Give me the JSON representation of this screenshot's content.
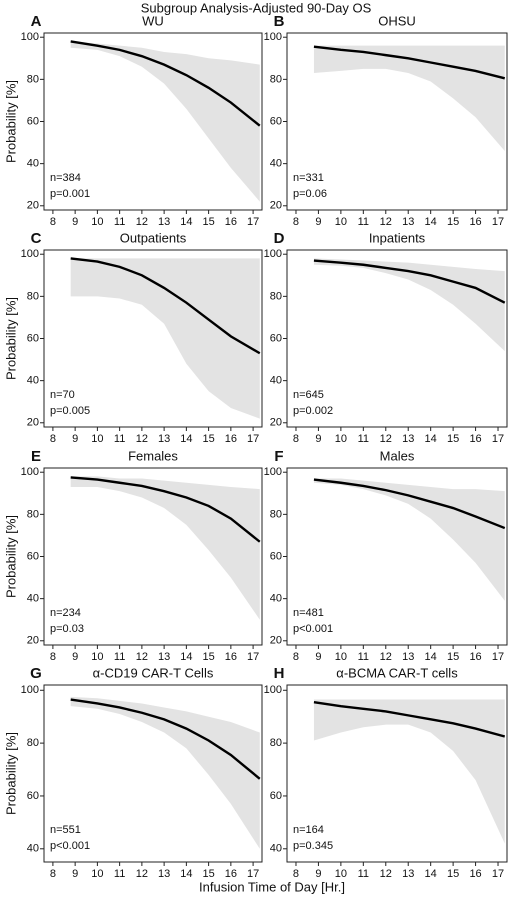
{
  "title": "Subgroup Analysis-Adjusted 90-Day OS",
  "x_label": "Infusion Time of Day [Hr.]",
  "chart_data": [
    {
      "type": "line",
      "panel_label": "A",
      "title": "WU",
      "ylabel": "Probability [%]",
      "x": [
        8.8,
        10,
        11,
        12,
        13,
        14,
        15,
        16,
        17.3
      ],
      "series": [
        {
          "color": "#000000",
          "values": [
            98,
            96,
            94,
            91,
            87,
            82,
            76,
            69,
            58
          ]
        }
      ],
      "ci_upper": [
        98,
        97,
        96,
        95,
        93,
        92,
        90,
        89,
        87
      ],
      "ci_lower": [
        95,
        94,
        91,
        86,
        78,
        66,
        52,
        38,
        22
      ],
      "ci_color": "#e3e3e3",
      "xlim": [
        7.6,
        17.4
      ],
      "xticks": [
        8,
        9,
        10,
        11,
        12,
        13,
        14,
        15,
        16,
        17
      ],
      "ylim": [
        18,
        102
      ],
      "yticks": [
        20,
        40,
        60,
        80,
        100
      ],
      "annotations": [
        "n=384",
        "p=0.001"
      ]
    },
    {
      "type": "line",
      "panel_label": "B",
      "title": "OHSU",
      "x": [
        8.8,
        10,
        11,
        12,
        13,
        14,
        15,
        16,
        17.3
      ],
      "series": [
        {
          "color": "#000000",
          "values": [
            95.5,
            94,
            93,
            91.5,
            90,
            88,
            86,
            84,
            80.5
          ]
        }
      ],
      "ci_upper": [
        96,
        96,
        96,
        96,
        96,
        96,
        96,
        96,
        96
      ],
      "ci_lower": [
        83,
        84,
        85,
        85,
        83,
        79,
        71,
        62,
        46
      ],
      "ci_color": "#e3e3e3",
      "xlim": [
        7.6,
        17.4
      ],
      "xticks": [
        8,
        9,
        10,
        11,
        12,
        13,
        14,
        15,
        16,
        17
      ],
      "ylim": [
        18,
        102
      ],
      "yticks": [
        20,
        40,
        60,
        80,
        100
      ],
      "annotations": [
        "n=331",
        "p=0.06"
      ]
    },
    {
      "type": "line",
      "panel_label": "C",
      "title": "Outpatients",
      "ylabel": "Probability [%]",
      "x": [
        8.8,
        10,
        11,
        12,
        13,
        14,
        15,
        16,
        17.3
      ],
      "series": [
        {
          "color": "#000000",
          "values": [
            98,
            96.5,
            94,
            90,
            84,
            77,
            69,
            61,
            53
          ]
        }
      ],
      "ci_upper": [
        98,
        98,
        98,
        98,
        98,
        98,
        98,
        98,
        98
      ],
      "ci_lower": [
        80,
        80,
        79,
        76,
        67,
        48,
        35,
        27,
        22
      ],
      "ci_color": "#e3e3e3",
      "xlim": [
        7.6,
        17.4
      ],
      "xticks": [
        8,
        9,
        10,
        11,
        12,
        13,
        14,
        15,
        16,
        17
      ],
      "ylim": [
        18,
        102
      ],
      "yticks": [
        20,
        40,
        60,
        80,
        100
      ],
      "annotations": [
        "n=70",
        "p=0.005"
      ]
    },
    {
      "type": "line",
      "panel_label": "D",
      "title": "Inpatients",
      "x": [
        8.8,
        10,
        11,
        12,
        13,
        14,
        15,
        16,
        17.3
      ],
      "series": [
        {
          "color": "#000000",
          "values": [
            97,
            96,
            95,
            93.5,
            92,
            90,
            87,
            84,
            77
          ]
        }
      ],
      "ci_upper": [
        98,
        97.5,
        97,
        96.5,
        96,
        95,
        94,
        93,
        92
      ],
      "ci_lower": [
        95,
        94.5,
        93.5,
        91,
        88,
        83,
        76,
        67,
        54
      ],
      "ci_color": "#e3e3e3",
      "xlim": [
        7.6,
        17.4
      ],
      "xticks": [
        8,
        9,
        10,
        11,
        12,
        13,
        14,
        15,
        16,
        17
      ],
      "ylim": [
        18,
        102
      ],
      "yticks": [
        20,
        40,
        60,
        80,
        100
      ],
      "annotations": [
        "n=645",
        "p=0.002"
      ]
    },
    {
      "type": "line",
      "panel_label": "E",
      "title": "Females",
      "ylabel": "Probability [%]",
      "x": [
        8.8,
        10,
        11,
        12,
        13,
        14,
        15,
        16,
        17.3
      ],
      "series": [
        {
          "color": "#000000",
          "values": [
            97.5,
            96.5,
            95,
            93.5,
            91,
            88,
            84,
            78,
            67
          ]
        }
      ],
      "ci_upper": [
        98,
        98,
        97,
        97,
        96,
        95,
        94,
        93,
        92
      ],
      "ci_lower": [
        93,
        93,
        91,
        88,
        83,
        75,
        63,
        50,
        30
      ],
      "ci_color": "#e3e3e3",
      "xlim": [
        7.6,
        17.4
      ],
      "xticks": [
        8,
        9,
        10,
        11,
        12,
        13,
        14,
        15,
        16,
        17
      ],
      "ylim": [
        18,
        102
      ],
      "yticks": [
        20,
        40,
        60,
        80,
        100
      ],
      "annotations": [
        "n=234",
        "p=0.03"
      ]
    },
    {
      "type": "line",
      "panel_label": "F",
      "title": "Males",
      "x": [
        8.8,
        10,
        11,
        12,
        13,
        14,
        15,
        16,
        17.3
      ],
      "series": [
        {
          "color": "#000000",
          "values": [
            96.5,
            95,
            93.5,
            91.5,
            89,
            86,
            83,
            79,
            73.5
          ]
        }
      ],
      "ci_upper": [
        97,
        97,
        96,
        95,
        94,
        93,
        92,
        92,
        91
      ],
      "ci_lower": [
        95,
        94,
        92,
        89,
        85,
        78,
        68,
        57,
        39
      ],
      "ci_color": "#e3e3e3",
      "xlim": [
        7.6,
        17.4
      ],
      "xticks": [
        8,
        9,
        10,
        11,
        12,
        13,
        14,
        15,
        16,
        17
      ],
      "ylim": [
        18,
        102
      ],
      "yticks": [
        20,
        40,
        60,
        80,
        100
      ],
      "annotations": [
        "n=481",
        "p<0.001"
      ]
    },
    {
      "type": "line",
      "panel_label": "G",
      "title": "α-CD19 CAR-T Cells",
      "ylabel": "Probability [%]",
      "x": [
        8.8,
        10,
        11,
        12,
        13,
        14,
        15,
        16,
        17.3
      ],
      "series": [
        {
          "color": "#000000",
          "values": [
            96.5,
            95,
            93.5,
            91.5,
            89,
            85.5,
            81,
            75.5,
            66.5
          ]
        }
      ],
      "ci_upper": [
        97.5,
        97,
        96,
        95,
        93.5,
        92,
        90,
        88,
        84
      ],
      "ci_lower": [
        94,
        93,
        91,
        88,
        84,
        78,
        68,
        57,
        40
      ],
      "ci_color": "#e3e3e3",
      "xlim": [
        7.6,
        17.4
      ],
      "xticks": [
        8,
        9,
        10,
        11,
        12,
        13,
        14,
        15,
        16,
        17
      ],
      "ylim": [
        35,
        102
      ],
      "yticks": [
        40,
        60,
        80,
        100
      ],
      "annotations": [
        "n=551",
        "p<0.001"
      ]
    },
    {
      "type": "line",
      "panel_label": "H",
      "title": "α-BCMA CAR-T cells",
      "x": [
        8.8,
        10,
        11,
        12,
        13,
        14,
        15,
        16,
        17.3
      ],
      "series": [
        {
          "color": "#000000",
          "values": [
            95.5,
            94,
            93,
            92,
            90.5,
            89,
            87.5,
            85.5,
            82.5
          ]
        }
      ],
      "ci_upper": [
        96.5,
        96.5,
        96.5,
        96.5,
        96.5,
        96.5,
        96.5,
        96.5,
        96.5
      ],
      "ci_lower": [
        81,
        84,
        86,
        87,
        87,
        84,
        77,
        66,
        42
      ],
      "ci_color": "#e3e3e3",
      "xlim": [
        7.6,
        17.4
      ],
      "xticks": [
        8,
        9,
        10,
        11,
        12,
        13,
        14,
        15,
        16,
        17
      ],
      "ylim": [
        35,
        102
      ],
      "yticks": [
        40,
        60,
        80,
        100
      ],
      "annotations": [
        "n=164",
        "p=0.345"
      ]
    }
  ]
}
